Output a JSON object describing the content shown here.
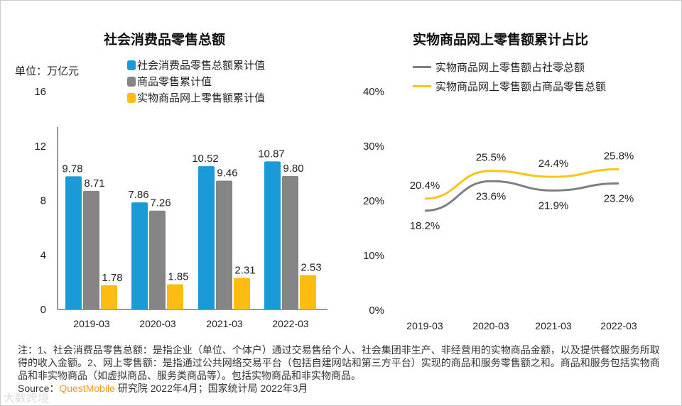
{
  "chart_data": [
    {
      "type": "bar",
      "title": "社会消费品零售总额",
      "unit_label": "单位：万亿元",
      "categories": [
        "2019-03",
        "2020-03",
        "2021-03",
        "2022-03"
      ],
      "series": [
        {
          "name": "社会消费品零售总额累计值",
          "color": "#1a9ad6",
          "values": [
            9.78,
            7.86,
            10.52,
            10.87
          ]
        },
        {
          "name": "商品零售累计值",
          "color": "#858585",
          "values": [
            8.71,
            7.26,
            9.46,
            9.8
          ]
        },
        {
          "name": "实物商品网上零售额累计值",
          "color": "#fdbc12",
          "values": [
            1.78,
            1.85,
            2.31,
            2.53
          ]
        }
      ],
      "yticks": [
        "0",
        "4",
        "8",
        "12",
        "16"
      ],
      "ylim": [
        0,
        16
      ]
    },
    {
      "type": "line",
      "title": "实物商品网上零售额累计占比",
      "categories": [
        "2019-03",
        "2020-03",
        "2021-03",
        "2022-03"
      ],
      "series": [
        {
          "name": "实物商品网上零售额占社零总额",
          "color": "#7f7f7f",
          "values": [
            18.2,
            23.6,
            21.9,
            23.2
          ],
          "labels": [
            "18.2%",
            "23.6%",
            "21.9%",
            "23.2%"
          ]
        },
        {
          "name": "实物商品网上零售额占商品零售总额",
          "color": "#fcc419",
          "values": [
            20.4,
            25.5,
            24.4,
            25.8
          ],
          "labels": [
            "20.4%",
            "25.5%",
            "24.4%",
            "25.8%"
          ]
        }
      ],
      "yticks": [
        "0%",
        "10%",
        "20%",
        "30%",
        "40%"
      ],
      "ylim": [
        0,
        40
      ]
    }
  ],
  "note": "注：1、社会消费品零售总额：是指企业（单位、个体户）通过交易售给个人、社会集团非生产、非经营用的实物商品金额，以及提供餐饮服务所取得的收入金额。2、网上零售额：是指通过公共网络交易平台（包括自建网站和第三方平台）实现的商品和服务零售额之和。商品和服务包括实物商品和非实物商品（如虚拟商品、服务类商品等）。包括实物商品和非实物商品。",
  "source_label": "Source：",
  "source_brand": "QuestMobile",
  "source_rest": "研究院 2022年4月；国家统计局 2022年3月",
  "watermark": "大数跨境"
}
